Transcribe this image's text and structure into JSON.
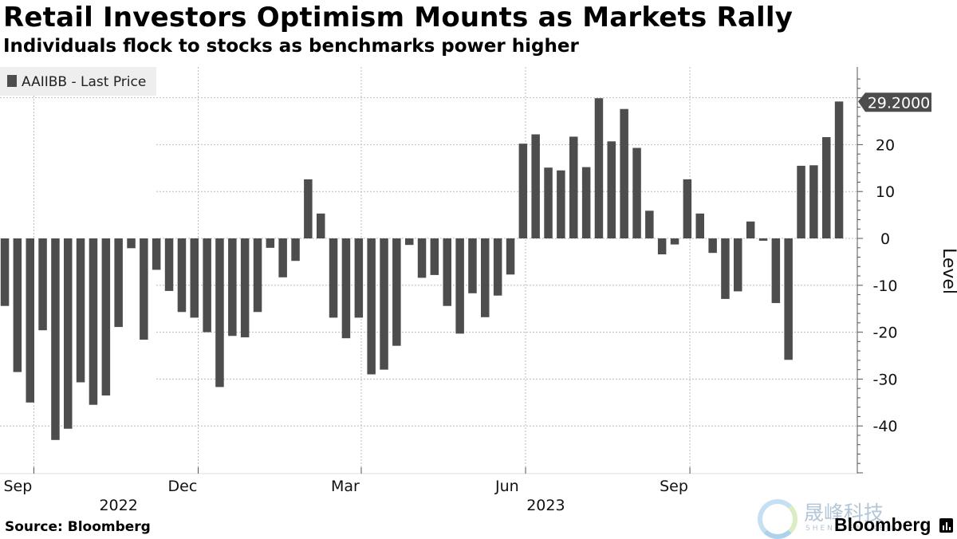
{
  "header": {
    "title": "Retail Investors Optimism Mounts as Markets Rally",
    "subtitle": "Individuals flock to stocks as benchmarks power higher"
  },
  "footer": {
    "source": "Source: Bloomberg",
    "brand": "Bloomberg"
  },
  "watermark": {
    "cn": "晟峰科技",
    "en": "SHENGFENGKEJI"
  },
  "colors": {
    "bar": "#4d4d4d",
    "grid": "#bcbcbc",
    "axis": "#555555",
    "legend_bg": "#eeeeee",
    "label_bg": "#4d4d4d"
  },
  "chart_data": {
    "type": "bar",
    "title": "Retail Investors Optimism Mounts as Markets Rally",
    "subtitle": "Individuals flock to stocks as benchmarks power higher",
    "legend": [
      "AAIIBB - Last Price"
    ],
    "legend_position": "top-left",
    "ylabel": "Level",
    "y_axis_side": "right",
    "ylim": [
      -50,
      36
    ],
    "yticks": [
      20,
      10,
      0,
      -10,
      -20,
      -30,
      -40
    ],
    "grid": true,
    "x_range": [
      0,
      68
    ],
    "month_ticks": [
      {
        "label": "Sep",
        "x": 2.3
      },
      {
        "label": "Dec",
        "x": 15.3
      },
      {
        "label": "Mar",
        "x": 28.2
      },
      {
        "label": "Jun",
        "x": 41.2
      },
      {
        "label": "Sep",
        "x": 54.2
      }
    ],
    "year_labels": [
      {
        "label": "2022",
        "x": 9
      },
      {
        "label": "2023",
        "x": 42.8
      }
    ],
    "last_value_label": "29.2000",
    "series": [
      {
        "name": "AAIIBB - Last Price",
        "values": [
          -14.4,
          -28.5,
          -35.0,
          -19.6,
          -43.0,
          -40.6,
          -30.7,
          -35.5,
          -33.5,
          -18.9,
          -2.1,
          -21.6,
          -6.7,
          -11.2,
          -15.7,
          -16.9,
          -20.0,
          -31.7,
          -20.8,
          -21.1,
          -15.7,
          -2.0,
          -8.3,
          -4.8,
          12.6,
          5.3,
          -16.9,
          -21.3,
          -16.9,
          -29.0,
          -28.0,
          -22.9,
          -1.4,
          -8.4,
          -7.8,
          -14.4,
          -20.3,
          -11.7,
          -16.8,
          -12.2,
          -7.7,
          20.2,
          22.2,
          15.1,
          14.5,
          21.7,
          15.2,
          29.9,
          20.7,
          27.6,
          19.3,
          5.9,
          -3.4,
          -1.3,
          12.6,
          5.3,
          -3.1,
          -12.9,
          -11.3,
          3.6,
          -0.5,
          -13.8,
          -25.9,
          15.5,
          15.6,
          21.6,
          29.2
        ]
      }
    ]
  }
}
